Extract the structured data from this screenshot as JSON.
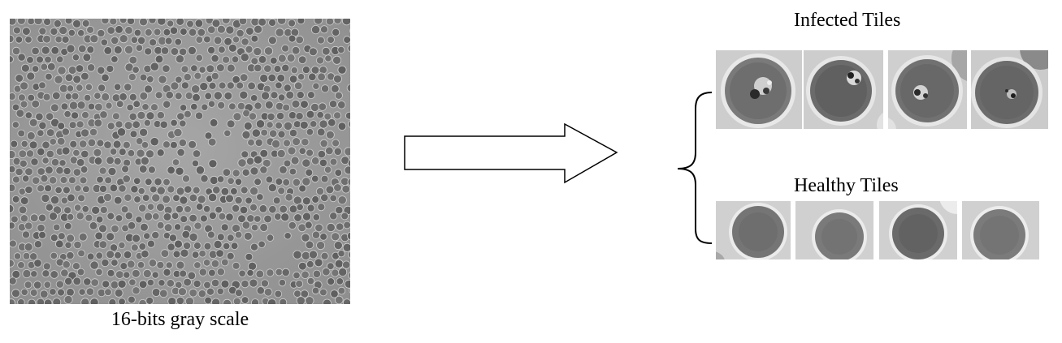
{
  "caption": "16-bits gray scale",
  "infected_label": "Infected Tiles",
  "healthy_label": "Healthy Tiles",
  "colors": {
    "background_gray": "#9a9a9a",
    "cell_dark": "#6d6d6d",
    "tile_background": "#c8c8c8",
    "line": "#000000"
  }
}
